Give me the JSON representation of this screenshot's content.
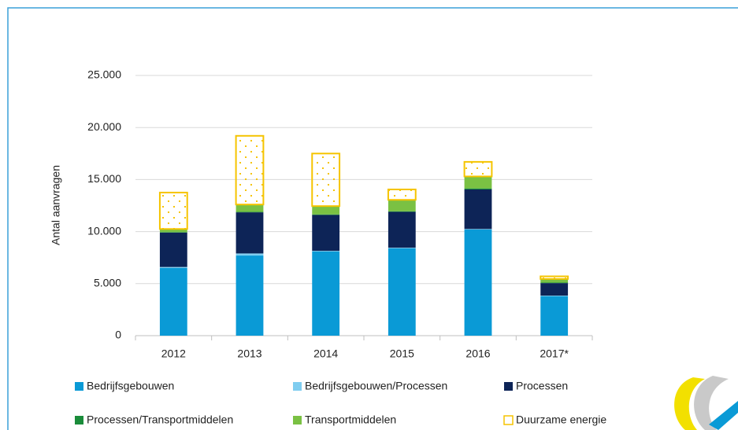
{
  "chart_data": {
    "type": "stacked_bar",
    "ylabel": "Antal aanvragen",
    "categories": [
      "2012",
      "2013",
      "2014",
      "2015",
      "2016",
      "2017*"
    ],
    "ylim": [
      0,
      25000
    ],
    "yticks": [
      0,
      {
        "value": 5000,
        "label": "5.000"
      },
      {
        "value": 10000,
        "label": "10.000"
      },
      {
        "value": 15000,
        "label": "15.000"
      },
      {
        "value": 20000,
        "label": "20.000"
      },
      {
        "value": 25000,
        "label": "25.000"
      }
    ],
    "grid": true,
    "series": [
      {
        "name": "Bedrijfsgebouwen",
        "color": "#0a9ad6",
        "values": [
          6500,
          7700,
          8100,
          8400,
          10200,
          3800
        ]
      },
      {
        "name": "Bedrijfsgebouwen/Processen",
        "color": "#7fcdf0",
        "values": [
          100,
          200,
          50,
          50,
          50,
          50
        ]
      },
      {
        "name": "Processen",
        "color": "#0d2457",
        "values": [
          3300,
          3950,
          3450,
          3450,
          3800,
          1200
        ]
      },
      {
        "name": "Processen/Transportmiddelen",
        "color": "#1a8c3a",
        "values": [
          50,
          50,
          50,
          50,
          100,
          50
        ]
      },
      {
        "name": "Transportmiddelen",
        "color": "#7ac143",
        "values": [
          300,
          700,
          800,
          1100,
          1150,
          350
        ]
      },
      {
        "name": "Duurzame energie",
        "color": "#f5c400",
        "outline": true,
        "values": [
          3500,
          6600,
          5050,
          1000,
          1400,
          250
        ]
      }
    ]
  }
}
